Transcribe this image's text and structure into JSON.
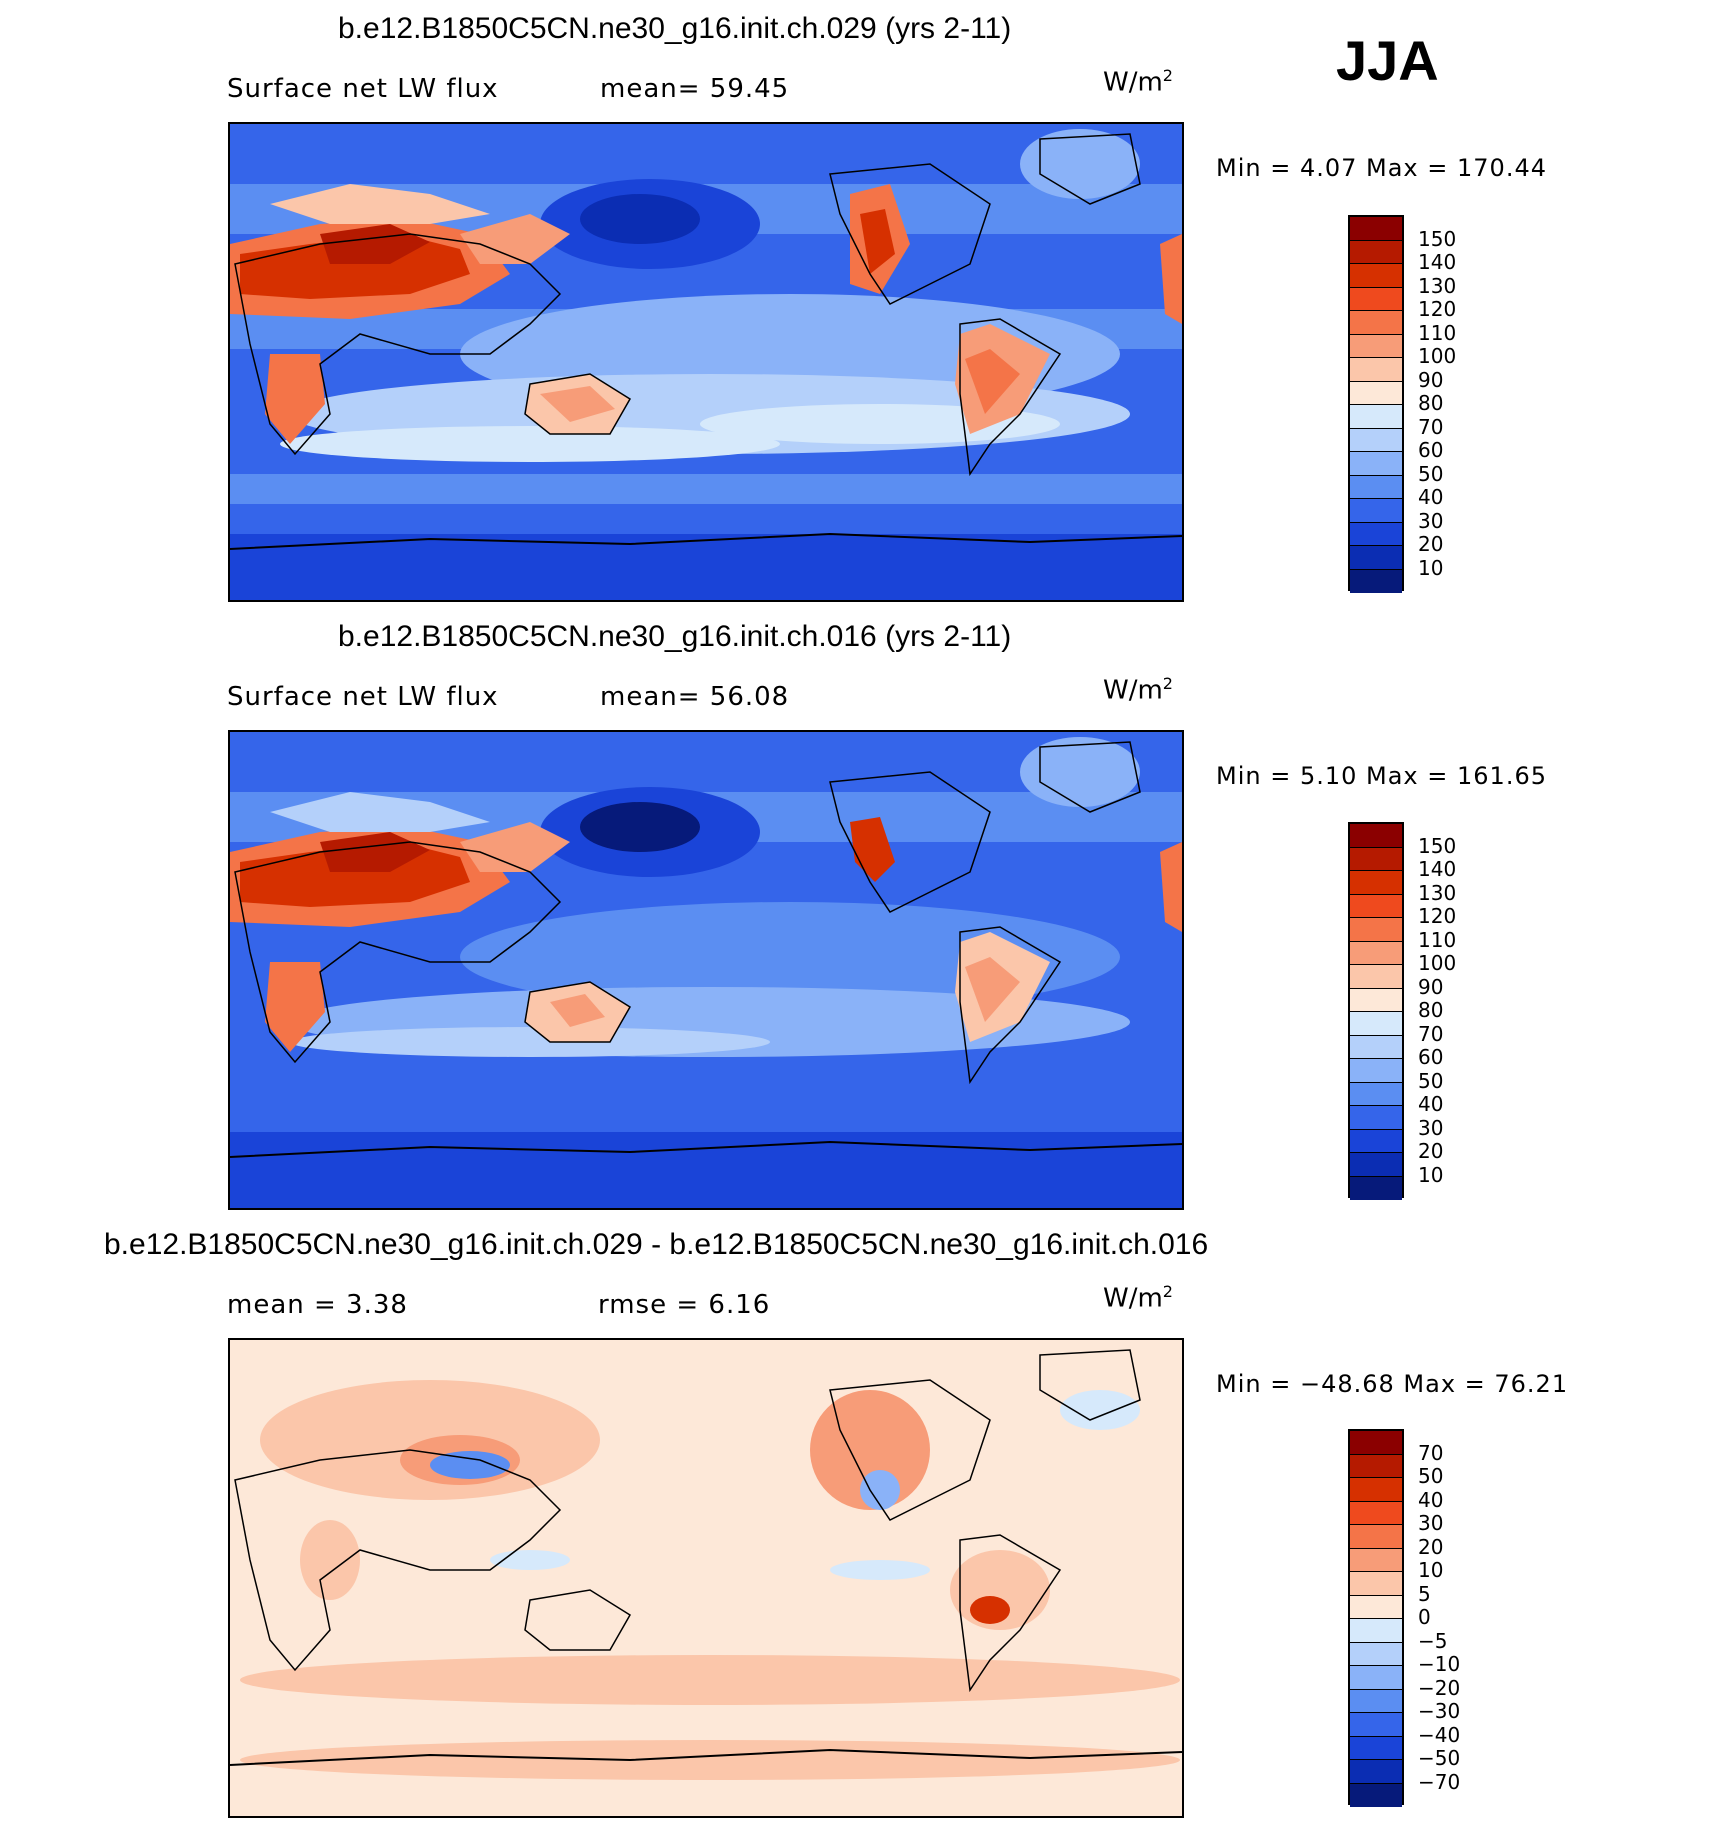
{
  "season": "JJA",
  "panels": [
    {
      "title": "b.e12.B1850C5CN.ne30_g16.init.ch.029 (yrs 2-11)",
      "left_label": "Surface net LW flux",
      "center_label": "mean=  59.45",
      "units": "W/m",
      "units_exp": "2",
      "minmax": "Min =   4.07 Max = 170.44",
      "colorbar": {
        "levels": [
          "150",
          "140",
          "130",
          "120",
          "110",
          "100",
          "90",
          "80",
          "70",
          "60",
          "50",
          "40",
          "30",
          "20",
          "10"
        ],
        "colors": [
          "#8b0000",
          "#b51a00",
          "#d63000",
          "#ef4a1e",
          "#f47448",
          "#f79c78",
          "#fbc6aa",
          "#fde8d8",
          "#d6e9fb",
          "#b4d0fa",
          "#8ab2f8",
          "#5b8ef2",
          "#3565ea",
          "#1a44d8",
          "#0b2db3",
          "#061a7a"
        ]
      },
      "chart_data": {
        "type": "heatmap",
        "title": "b.e12.B1850C5CN.ne30_g16.init.ch.029 (yrs 2-11)",
        "variable": "Surface net LW flux",
        "units": "W/m2",
        "mean": 59.45,
        "min": 4.07,
        "max": 170.44,
        "contour_levels": [
          10,
          20,
          30,
          40,
          50,
          60,
          70,
          80,
          90,
          100,
          110,
          120,
          130,
          140,
          150
        ]
      }
    },
    {
      "title": "b.e12.B1850C5CN.ne30_g16.init.ch.016 (yrs 2-11)",
      "left_label": "Surface net LW flux",
      "center_label": "mean=  56.08",
      "units": "W/m",
      "units_exp": "2",
      "minmax": "Min =   5.10 Max = 161.65",
      "colorbar": {
        "levels": [
          "150",
          "140",
          "130",
          "120",
          "110",
          "100",
          "90",
          "80",
          "70",
          "60",
          "50",
          "40",
          "30",
          "20",
          "10"
        ],
        "colors": [
          "#8b0000",
          "#b51a00",
          "#d63000",
          "#ef4a1e",
          "#f47448",
          "#f79c78",
          "#fbc6aa",
          "#fde8d8",
          "#d6e9fb",
          "#b4d0fa",
          "#8ab2f8",
          "#5b8ef2",
          "#3565ea",
          "#1a44d8",
          "#0b2db3",
          "#061a7a"
        ]
      },
      "chart_data": {
        "type": "heatmap",
        "title": "b.e12.B1850C5CN.ne30_g16.init.ch.016 (yrs 2-11)",
        "variable": "Surface net LW flux",
        "units": "W/m2",
        "mean": 56.08,
        "min": 5.1,
        "max": 161.65,
        "contour_levels": [
          10,
          20,
          30,
          40,
          50,
          60,
          70,
          80,
          90,
          100,
          110,
          120,
          130,
          140,
          150
        ]
      }
    },
    {
      "title": "b.e12.B1850C5CN.ne30_g16.init.ch.029 - b.e12.B1850C5CN.ne30_g16.init.ch.016",
      "left_label": "mean =   3.38",
      "center_label": "rmse =   6.16",
      "units": "W/m",
      "units_exp": "2",
      "minmax": "Min = −48.68 Max =   76.21",
      "colorbar": {
        "levels": [
          "70",
          "50",
          "40",
          "30",
          "20",
          "10",
          "5",
          "0",
          "−5",
          "−10",
          "−20",
          "−30",
          "−40",
          "−50",
          "−70"
        ],
        "colors": [
          "#8b0000",
          "#b51a00",
          "#d63000",
          "#ef4a1e",
          "#f47448",
          "#f79c78",
          "#fbc6aa",
          "#fde8d8",
          "#d6e9fb",
          "#b4d0fa",
          "#8ab2f8",
          "#5b8ef2",
          "#3565ea",
          "#1a44d8",
          "#0b2db3",
          "#061a7a"
        ]
      },
      "chart_data": {
        "type": "heatmap",
        "title": "b.e12.B1850C5CN.ne30_g16.init.ch.029 - b.e12.B1850C5CN.ne30_g16.init.ch.016",
        "units": "W/m2",
        "mean": 3.38,
        "rmse": 6.16,
        "min": -48.68,
        "max": 76.21,
        "contour_levels": [
          -70,
          -50,
          -40,
          -30,
          -20,
          -10,
          -5,
          0,
          5,
          10,
          20,
          30,
          40,
          50,
          70
        ]
      }
    }
  ]
}
